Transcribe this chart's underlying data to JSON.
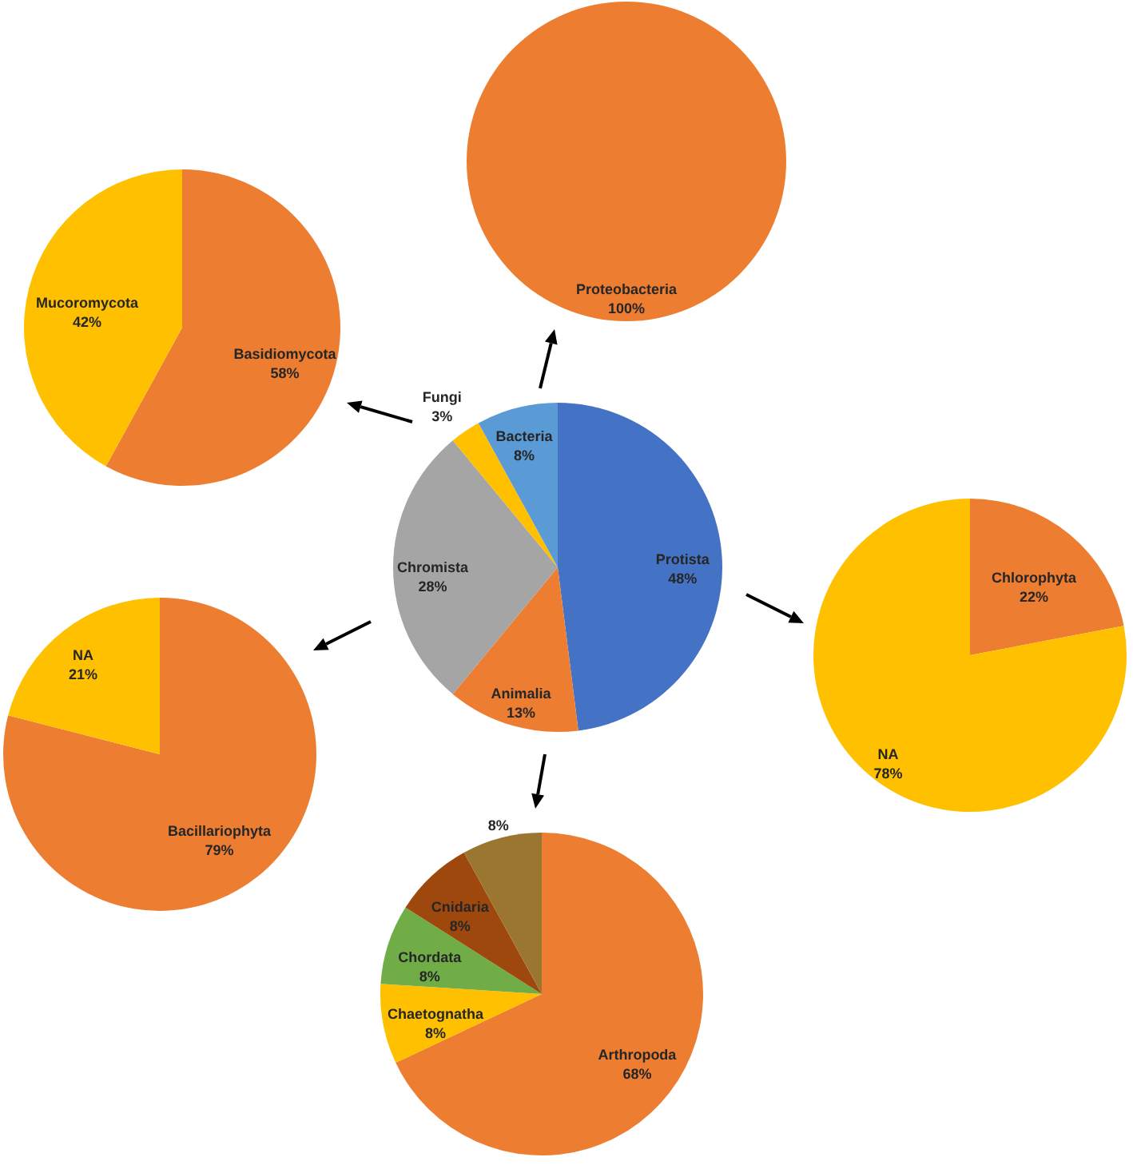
{
  "chart_data": [
    {
      "type": "pie",
      "categories": [
        "Basidiomycota",
        "Mucoromycota"
      ],
      "values": [
        58,
        42
      ],
      "colors": [
        "#ed7d31",
        "#ffc000"
      ],
      "value_labels": [
        "58%",
        "42%"
      ]
    },
    {
      "type": "pie",
      "categories": [
        "Proteobacteria"
      ],
      "values": [
        100
      ],
      "colors": [
        "#ed7d31"
      ],
      "value_labels": [
        "100%"
      ]
    },
    {
      "type": "pie",
      "categories": [
        "Bacillariophyta",
        "NA"
      ],
      "values": [
        79,
        21
      ],
      "colors": [
        "#ed7d31",
        "#ffc000"
      ],
      "value_labels": [
        "79%",
        "21%"
      ]
    },
    {
      "type": "pie",
      "categories": [
        "Protista",
        "Animalia",
        "Chromista",
        "Fungi",
        "Bacteria"
      ],
      "values": [
        48,
        13,
        28,
        3,
        8
      ],
      "colors": [
        "#4472c4",
        "#ed7d31",
        "#a5a5a5",
        "#ffc000",
        "#5b9bd5"
      ],
      "value_labels": [
        "48%",
        "13%",
        "28%",
        "3%",
        "8%"
      ]
    },
    {
      "type": "pie",
      "categories": [
        "Chlorophyta",
        "NA"
      ],
      "values": [
        22,
        78
      ],
      "colors": [
        "#ed7d31",
        "#ffc000"
      ],
      "value_labels": [
        "22%",
        "78%"
      ]
    },
    {
      "type": "pie",
      "categories": [
        "Arthropoda",
        "Chaetognatha",
        "Chordata",
        "Cnidaria",
        null
      ],
      "values": [
        68,
        8,
        8,
        8,
        8
      ],
      "colors": [
        "#ed7d31",
        "#ffc000",
        "#70ad47",
        "#9e480e",
        "#9a7630"
      ],
      "value_labels": [
        "68%",
        "8%",
        "8%",
        "8%",
        "8%"
      ]
    }
  ]
}
